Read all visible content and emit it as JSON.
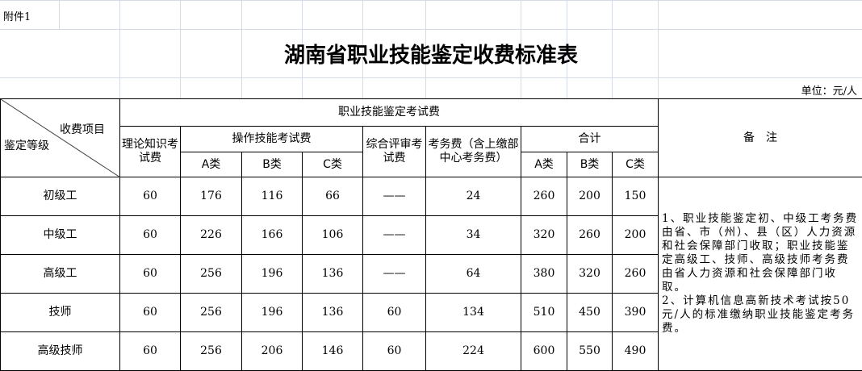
{
  "attachment_label": "附件1",
  "title": "湖南省职业技能鉴定收费标准表",
  "unit": "单位：元/人",
  "header": {
    "corner_top": "收费项目",
    "corner_bottom": "鉴定等级",
    "group": "职业技能鉴定考试费",
    "theory": "理论知识考试费",
    "operation": "操作技能考试费",
    "comprehensive": "综合评审考试费",
    "affairs": "考务费（含上缴部中心考务费）",
    "total": "合计",
    "remarks": "备　注",
    "a": "A类",
    "b": "B类",
    "c": "C类"
  },
  "rows": [
    {
      "level": "初级工",
      "theory": "60",
      "op_a": "176",
      "op_b": "116",
      "op_c": "66",
      "comp": "——",
      "affairs": "24",
      "tot_a": "260",
      "tot_b": "200",
      "tot_c": "150"
    },
    {
      "level": "中级工",
      "theory": "60",
      "op_a": "226",
      "op_b": "166",
      "op_c": "106",
      "comp": "——",
      "affairs": "34",
      "tot_a": "320",
      "tot_b": "260",
      "tot_c": "200"
    },
    {
      "level": "高级工",
      "theory": "60",
      "op_a": "256",
      "op_b": "196",
      "op_c": "136",
      "comp": "——",
      "affairs": "64",
      "tot_a": "380",
      "tot_b": "320",
      "tot_c": "260"
    },
    {
      "level": "技师",
      "theory": "60",
      "op_a": "256",
      "op_b": "196",
      "op_c": "136",
      "comp": "60",
      "affairs": "134",
      "tot_a": "510",
      "tot_b": "450",
      "tot_c": "390"
    },
    {
      "level": "高级技师",
      "theory": "60",
      "op_a": "256",
      "op_b": "206",
      "op_c": "146",
      "comp": "60",
      "affairs": "224",
      "tot_a": "600",
      "tot_b": "550",
      "tot_c": "490"
    }
  ],
  "notes": "1、职业技能鉴定初、中级工考务费由省、市（州）、县（区）人力资源和社会保障部门收取；职业技能鉴定高级工、技师、高级技师考务费由省人力资源和社会保障部门收取。\n2、计算机信息高新技术考试按50元/人的标准缴纳职业技能鉴定考务费。"
}
